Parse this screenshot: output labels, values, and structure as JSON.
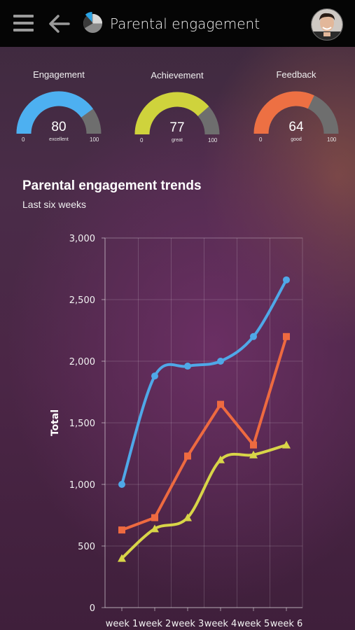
{
  "header": {
    "menu_icon": "hamburger-menu-icon",
    "back_icon": "arrow-left-icon",
    "logo_icon": "pie-chart-logo-icon",
    "title": "Parental engagement",
    "avatar_icon": "user-avatar"
  },
  "gauges": [
    {
      "title": "Engagement",
      "value": "80",
      "label": "excellent",
      "min": "0",
      "max": "100",
      "fraction": 0.8,
      "color": "#4db0f1",
      "track": "#6e6e6e"
    },
    {
      "title": "Achievement",
      "value": "77",
      "label": "great",
      "min": "0",
      "max": "100",
      "fraction": 0.77,
      "color": "#cfd33c",
      "track": "#6e6e6e"
    },
    {
      "title": "Feedback",
      "value": "64",
      "label": "good",
      "min": "0",
      "max": "100",
      "fraction": 0.64,
      "color": "#ed7043",
      "track": "#6e6e6e"
    }
  ],
  "trends": {
    "title": "Parental engagement trends",
    "subtitle": "Last six weeks"
  },
  "chart_data": {
    "type": "line",
    "categories": [
      "week 1",
      "week 2",
      "week 3",
      "week 4",
      "week 5",
      "week 6"
    ],
    "series": [
      {
        "values": [
          1000,
          1880,
          1960,
          2000,
          2200,
          2660
        ],
        "color": "#4fa8e8",
        "marker": "circle",
        "smooth": true
      },
      {
        "values": [
          630,
          730,
          1230,
          1650,
          1320,
          2200
        ],
        "color": "#ee6a40",
        "marker": "square",
        "smooth": false
      },
      {
        "values": [
          400,
          640,
          730,
          1200,
          1240,
          1320
        ],
        "color": "#d8d548",
        "marker": "triangle",
        "smooth": true
      }
    ],
    "ylabel": "Total",
    "xlabel": "",
    "ylim": [
      0,
      3000
    ],
    "yticks": [
      "0",
      "500",
      "1,000",
      "1,500",
      "2,000",
      "2,500",
      "3,000"
    ],
    "grid": true,
    "legend": "none"
  }
}
